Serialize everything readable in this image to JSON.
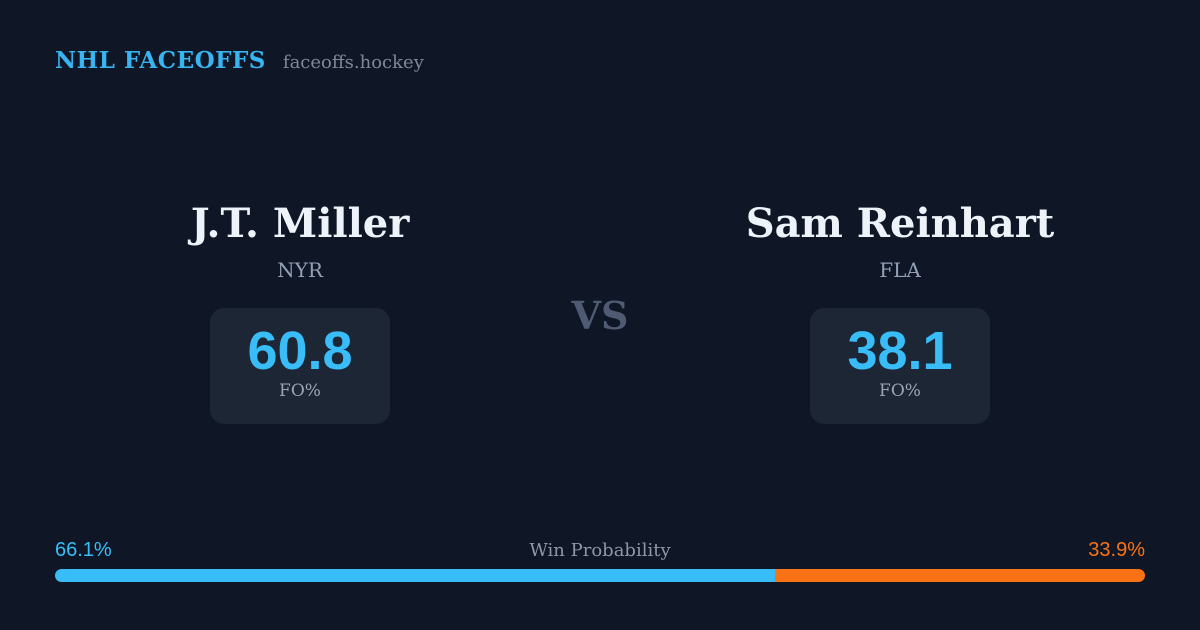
{
  "card": {
    "background": "#0f1726",
    "panel_color": "#1c2635"
  },
  "header": {
    "title": "NHL FACEOFFS",
    "site": "faceoffs.hockey",
    "accent": "#38b4f0"
  },
  "matchup": {
    "vs_label": "VS",
    "stat_accent": "#38bdf8",
    "players": [
      {
        "name": "J.T. Miller",
        "team": "NYR",
        "stat_value": "60.8",
        "stat_label": "FO%"
      },
      {
        "name": "Sam Reinhart",
        "team": "FLA",
        "stat_value": "38.1",
        "stat_label": "FO%"
      }
    ]
  },
  "win_probability": {
    "label": "Win Probability",
    "left": {
      "text": "66.1%",
      "value": 66.1,
      "color": "#38bdf8"
    },
    "right": {
      "text": "33.9%",
      "value": 33.9,
      "color": "#f97316"
    }
  }
}
